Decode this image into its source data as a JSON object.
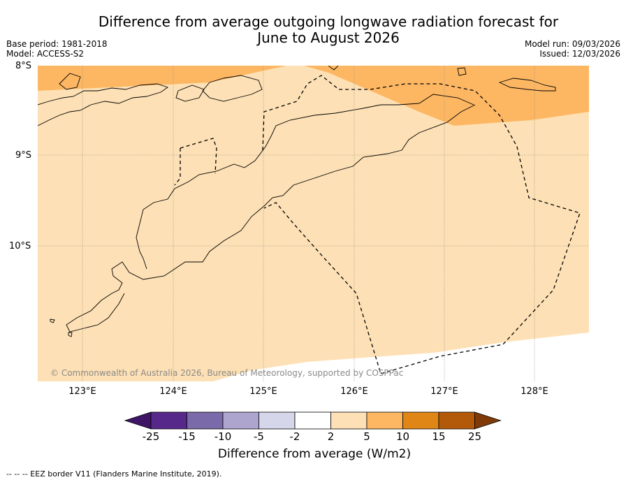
{
  "title_line1": "Difference from average outgoing longwave radiation forecast for",
  "title_line2": "June to August 2026",
  "meta_left": [
    "Base period: 1981-2018",
    "Model: ACCESS-S2"
  ],
  "meta_right": [
    "Model run: 09/03/2026",
    "Issued: 12/03/2026"
  ],
  "lat_labels": [
    "8°S",
    "9°S",
    "10°S"
  ],
  "lon_labels": [
    "123°E",
    "124°E",
    "125°E",
    "126°E",
    "127°E",
    "128°E"
  ],
  "credit": "© Commonwealth of Australia 2026, Bureau of Meteorology, supported by COSPPac",
  "colorbar": {
    "title": "Difference from average (W/m2)",
    "ticks": [
      "-25",
      "-15",
      "-10",
      "-5",
      "-2",
      "2",
      "5",
      "10",
      "15",
      "25"
    ],
    "colors": [
      "#3f1565",
      "#55288a",
      "#7b6aaa",
      "#aea5cf",
      "#d6d6ea",
      "#ffffff",
      "#fde0b5",
      "#fdb763",
      "#e08617",
      "#b3590a",
      "#7f3a08"
    ]
  },
  "footer": "--  --  -- EEZ border V11 (Flanders Marine Institute, 2019).",
  "palette": {
    "anomaly_2_5": "#fde0b5",
    "anomaly_5_10": "#fdb763"
  }
}
